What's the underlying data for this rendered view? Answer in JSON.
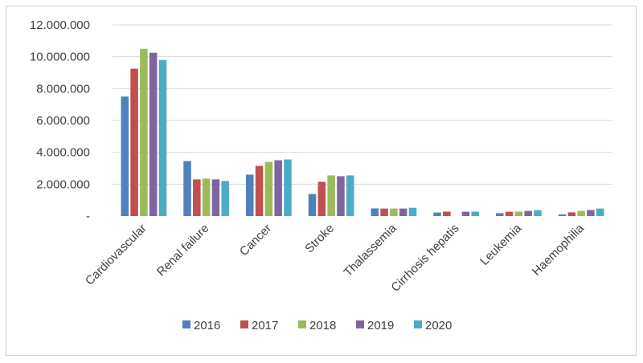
{
  "chart_data": {
    "type": "bar",
    "title": "",
    "xlabel": "",
    "ylabel": "",
    "ylim": [
      0,
      12000000
    ],
    "grid": true,
    "legend_position": "bottom",
    "y_ticks": [
      {
        "value": 0,
        "label": "-"
      },
      {
        "value": 2000000,
        "label": "2.000.000"
      },
      {
        "value": 4000000,
        "label": "4.000.000"
      },
      {
        "value": 6000000,
        "label": "6.000.000"
      },
      {
        "value": 8000000,
        "label": "8.000.000"
      },
      {
        "value": 10000000,
        "label": "10.000.000"
      },
      {
        "value": 12000000,
        "label": "12.000.000"
      }
    ],
    "categories": [
      "Cardiovascular",
      "Renal failure",
      "Cancer",
      "Stroke",
      "Thalassemia",
      "Cirrhosis hepatis",
      "Leukemia",
      "Haemophilia"
    ],
    "series": [
      {
        "name": "2016",
        "color": "#4F81BD",
        "values": [
          7500000,
          3450000,
          2600000,
          1380000,
          480000,
          220000,
          180000,
          100000
        ]
      },
      {
        "name": "2017",
        "color": "#C0504D",
        "values": [
          9250000,
          2300000,
          3150000,
          2150000,
          470000,
          280000,
          270000,
          230000
        ]
      },
      {
        "name": "2018",
        "color": "#9BBB59",
        "values": [
          10500000,
          2350000,
          3400000,
          2550000,
          470000,
          0,
          280000,
          320000
        ]
      },
      {
        "name": "2019",
        "color": "#8064A2",
        "values": [
          10250000,
          2300000,
          3500000,
          2500000,
          470000,
          270000,
          320000,
          380000
        ]
      },
      {
        "name": "2020",
        "color": "#4BACC6",
        "values": [
          9800000,
          2200000,
          3550000,
          2550000,
          520000,
          280000,
          370000,
          470000
        ]
      }
    ]
  }
}
